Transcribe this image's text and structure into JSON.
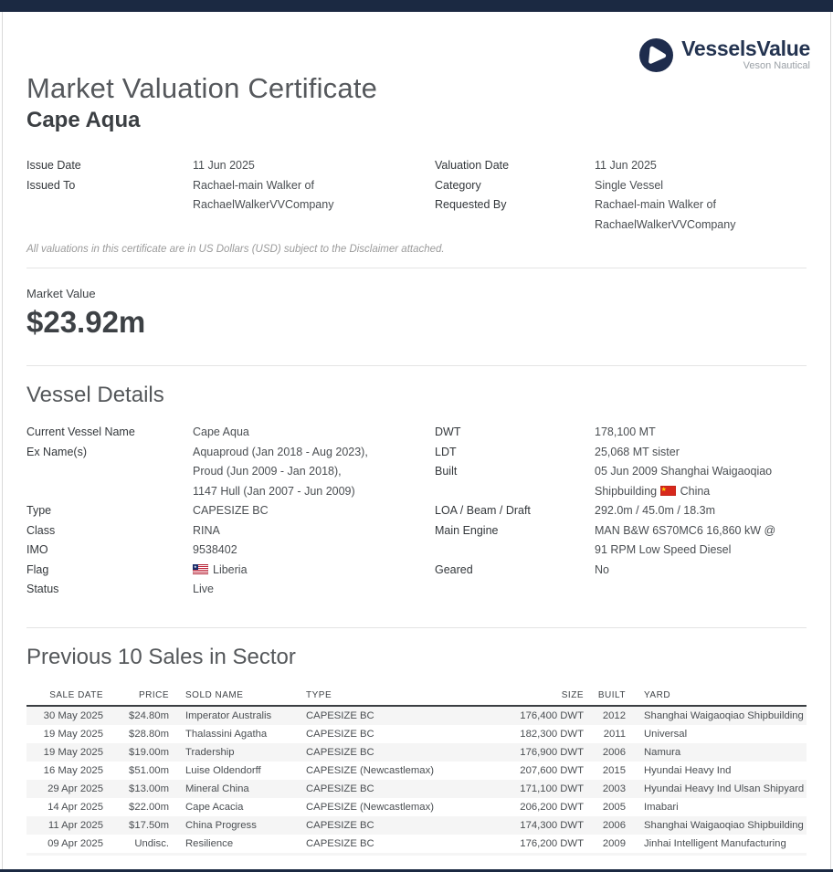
{
  "colors": {
    "navy": "#1b2942",
    "text_dark": "#3b3f43",
    "row_shade": "#f5f5f5"
  },
  "logo": {
    "brand": "VesselsValue",
    "tagline": "Veson Nautical",
    "icon": "play-triangle-in-circle"
  },
  "header": {
    "title": "Market Valuation Certificate",
    "vessel_name": "Cape Aqua"
  },
  "meta": {
    "left": [
      {
        "label": "Issue Date",
        "value": "11 Jun 2025"
      },
      {
        "label": "Issued To",
        "value": "Rachael-main Walker of\nRachaelWalkerVVCompany"
      }
    ],
    "right": [
      {
        "label": "Valuation Date",
        "value": "11 Jun 2025"
      },
      {
        "label": "Category",
        "value": "Single Vessel"
      },
      {
        "label": "Requested By",
        "value": "Rachael-main Walker of\nRachaelWalkerVVCompany"
      }
    ]
  },
  "disclaimer": "All valuations in this certificate are in US Dollars (USD) subject to the Disclaimer attached.",
  "market_value": {
    "label": "Market Value",
    "amount": "$23.92m"
  },
  "vessel_details": {
    "title": "Vessel Details",
    "left": [
      {
        "label": "Current Vessel Name",
        "value": "Cape Aqua"
      },
      {
        "label": "Ex Name(s)",
        "value": "Aquaproud (Jan 2018 - Aug 2023),\nProud (Jun 2009 - Jan 2018),\n1147 Hull (Jan 2007 - Jun 2009)"
      },
      {
        "label": "Type",
        "value": "CAPESIZE BC"
      },
      {
        "label": "Class",
        "value": "RINA"
      },
      {
        "label": "IMO",
        "value": "9538402"
      },
      {
        "label": "Flag",
        "value": "",
        "flag": "liberia",
        "value_after": "Liberia"
      },
      {
        "label": "Status",
        "value": "Live"
      }
    ],
    "right": [
      {
        "label": "DWT",
        "value": "178,100 MT"
      },
      {
        "label": "LDT",
        "value": "25,068 MT sister"
      },
      {
        "label": "Built",
        "value": "05 Jun 2009 Shanghai Waigaoqiao Shipbuilding",
        "flag": "china",
        "value_after": "China"
      },
      {
        "label": "LOA / Beam / Draft",
        "value": "292.0m / 45.0m / 18.3m"
      },
      {
        "label": "Main Engine",
        "value": "MAN B&W 6S70MC6 16,860 kW @ 91 RPM Low Speed Diesel"
      },
      {
        "label": "Geared",
        "value": "No"
      }
    ]
  },
  "sales": {
    "title": "Previous 10 Sales in Sector",
    "columns": [
      "SALE DATE",
      "PRICE",
      "SOLD NAME",
      "TYPE",
      "SIZE",
      "BUILT",
      "YARD"
    ],
    "rows": [
      {
        "sale_date": "30 May 2025",
        "price": "$24.80m",
        "sold_name": "Imperator Australis",
        "type": "CAPESIZE BC",
        "size": "176,400 DWT",
        "built": "2012",
        "yard": "Shanghai Waigaoqiao Shipbuilding"
      },
      {
        "sale_date": "19 May 2025",
        "price": "$28.80m",
        "sold_name": "Thalassini Agatha",
        "type": "CAPESIZE BC",
        "size": "182,300 DWT",
        "built": "2011",
        "yard": "Universal"
      },
      {
        "sale_date": "19 May 2025",
        "price": "$19.00m",
        "sold_name": "Tradership",
        "type": "CAPESIZE BC",
        "size": "176,900 DWT",
        "built": "2006",
        "yard": "Namura"
      },
      {
        "sale_date": "16 May 2025",
        "price": "$51.00m",
        "sold_name": "Luise Oldendorff",
        "type": "CAPESIZE (Newcastlemax)",
        "size": "207,600 DWT",
        "built": "2015",
        "yard": "Hyundai Heavy Ind"
      },
      {
        "sale_date": "29 Apr 2025",
        "price": "$13.00m",
        "sold_name": "Mineral China",
        "type": "CAPESIZE BC",
        "size": "171,100 DWT",
        "built": "2003",
        "yard": "Hyundai Heavy Ind Ulsan Shipyard"
      },
      {
        "sale_date": "14 Apr 2025",
        "price": "$22.00m",
        "sold_name": "Cape Acacia",
        "type": "CAPESIZE (Newcastlemax)",
        "size": "206,200 DWT",
        "built": "2005",
        "yard": "Imabari"
      },
      {
        "sale_date": "11 Apr 2025",
        "price": "$17.50m",
        "sold_name": "China Progress",
        "type": "CAPESIZE BC",
        "size": "174,300 DWT",
        "built": "2006",
        "yard": "Shanghai Waigaoqiao Shipbuilding"
      },
      {
        "sale_date": "09 Apr 2025",
        "price": "Undisc.",
        "sold_name": "Resilience",
        "type": "CAPESIZE BC",
        "size": "176,200 DWT",
        "built": "2009",
        "yard": "Jinhai Intelligent Manufacturing"
      }
    ]
  }
}
